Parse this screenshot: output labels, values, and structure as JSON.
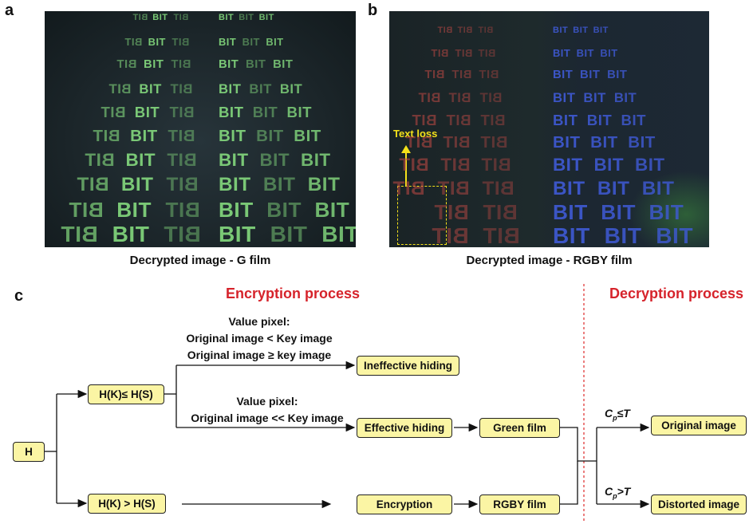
{
  "panels": {
    "a": {
      "letter": "a",
      "caption": "Decrypted image - G film",
      "text": "BIT",
      "color": "#7fd17a"
    },
    "b": {
      "letter": "b",
      "caption": "Decrypted image - RGBY film",
      "text": "BIT",
      "annotation": "Text loss",
      "red": "#c24a45",
      "blue": "#3f5ad6",
      "annotation_color": "#f4e11a"
    },
    "c": {
      "letter": "c"
    }
  },
  "diagram": {
    "encryption_heading": "Encryption process",
    "decryption_heading": "Decryption process",
    "nodes": {
      "h": "H",
      "hk_le_hs": "H(K)≤ H(S)",
      "hk_gt_hs": "H(K) > H(S)",
      "ineffective": "Ineffective hiding",
      "effective": "Effective hiding",
      "encryption": "Encryption",
      "green_film": "Green   film",
      "rgby_film": "RGBY  film",
      "original": "Original image",
      "distorted": "Distorted image"
    },
    "notes": {
      "top_title": "Value pixel:",
      "top_line1": "Original image < Key image",
      "top_line2": "Original image ≥ key image",
      "mid_title": "Value pixel:",
      "mid_line1": "Original image << Key image"
    },
    "conditions": {
      "le_c": "C",
      "le_sub": "p",
      "le_op": "≤T",
      "gt_c": "C",
      "gt_sub": "p",
      "gt_op": ">T"
    },
    "colors": {
      "heading": "#d6232b",
      "box_fill": "#fbf5a4",
      "divider": "#e03a3a"
    }
  }
}
